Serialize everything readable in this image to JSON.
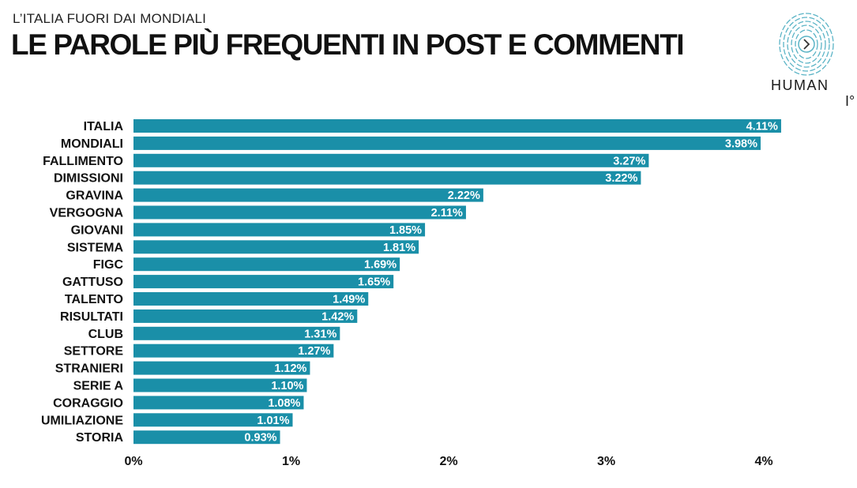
{
  "header": {
    "subtitle": "L’ITALIA FUORI DAI MONDIALI",
    "title": "LE PAROLE PIÙ FREQUENTI IN POST E COMMENTI"
  },
  "logo": {
    "text": "HUMAN",
    "mark": "I°",
    "icon": "fingerprint-arrow-icon",
    "color": "#5bb4c6"
  },
  "chart_data": {
    "type": "bar",
    "orientation": "horizontal",
    "categories": [
      "ITALIA",
      "MONDIALI",
      "FALLIMENTO",
      "DIMISSIONI",
      "GRAVINA",
      "VERGOGNA",
      "GIOVANI",
      "SISTEMA",
      "FIGC",
      "GATTUSO",
      "TALENTO",
      "RISULTATI",
      "CLUB",
      "SETTORE",
      "STRANIERI",
      "SERIE A",
      "CORAGGIO",
      "UMILIAZIONE",
      "STORIA"
    ],
    "values": [
      4.11,
      3.98,
      3.27,
      3.22,
      2.22,
      2.11,
      1.85,
      1.81,
      1.69,
      1.65,
      1.49,
      1.42,
      1.31,
      1.27,
      1.12,
      1.1,
      1.08,
      1.01,
      0.93
    ],
    "value_labels": [
      "4.11%",
      "3.98%",
      "3.27%",
      "3.22%",
      "2.22%",
      "2.11%",
      "1.85%",
      "1.81%",
      "1.69%",
      "1.65%",
      "1.49%",
      "1.42%",
      "1.31%",
      "1.27%",
      "1.12%",
      "1.10%",
      "1.08%",
      "1.01%",
      "0.93%"
    ],
    "x_ticks": [
      "0%",
      "1%",
      "2%",
      "3%",
      "4%"
    ],
    "xlim": [
      0,
      4
    ],
    "bar_color": "#1a8fa8",
    "grid": false,
    "legend": "none"
  }
}
